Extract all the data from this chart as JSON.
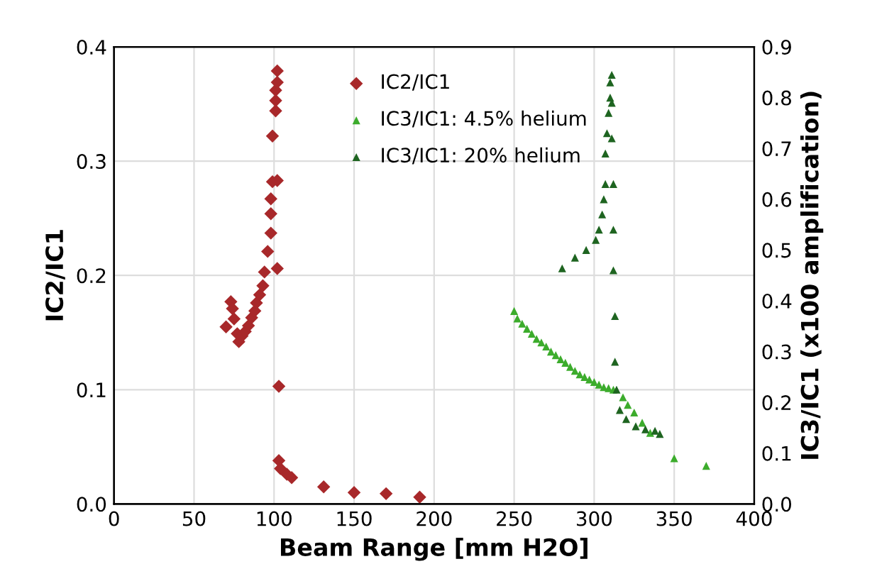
{
  "chart_data": {
    "type": "scatter",
    "xlabel": "Beam Range [mm H2O]",
    "ylabel": "IC2/IC1",
    "y2label": "IC3/IC1 (x100 amplification)",
    "xlim": [
      0,
      400
    ],
    "xticks": [
      0,
      50,
      100,
      150,
      200,
      250,
      300,
      350,
      400
    ],
    "ylim": [
      0,
      0.4
    ],
    "yticks": [
      {
        "value": 0,
        "label": "0.0"
      },
      0.1,
      0.2,
      0.3,
      0.4
    ],
    "y2lim": [
      0,
      0.9
    ],
    "y2ticks": [
      {
        "value": 0,
        "label": "0.0"
      },
      0.1,
      0.2,
      0.3,
      0.4,
      0.5,
      0.6,
      0.7,
      0.8,
      0.9
    ],
    "grid": true,
    "legend": "top",
    "series": [
      {
        "name": "IC2/IC1",
        "color": "#a8282a",
        "marker": "diamond",
        "x": [
          70,
          73,
          74,
          75,
          77,
          78,
          80,
          82,
          84,
          86,
          88,
          89,
          91,
          93,
          94,
          96,
          98,
          98,
          98,
          99,
          99,
          101,
          101,
          102,
          102,
          101,
          102,
          102,
          103,
          103,
          104,
          108,
          111,
          131,
          150,
          170,
          191
        ],
        "values": [
          0.155,
          0.177,
          0.171,
          0.162,
          0.149,
          0.142,
          0.147,
          0.151,
          0.156,
          0.163,
          0.169,
          0.176,
          0.183,
          0.191,
          0.203,
          0.221,
          0.237,
          0.254,
          0.267,
          0.282,
          0.322,
          0.353,
          0.362,
          0.379,
          0.369,
          0.344,
          0.283,
          0.206,
          0.103,
          0.038,
          0.031,
          0.026,
          0.023,
          0.015,
          0.01,
          0.009,
          0.006
        ]
      },
      {
        "name": "IC3/IC1: 4.5% helium",
        "color": "#3cac2c",
        "marker": "triangle",
        "axis": "y2",
        "x": [
          250,
          252,
          255,
          258,
          261,
          264,
          267,
          270,
          273,
          276,
          279,
          282,
          285,
          288,
          291,
          294,
          297,
          300,
          303,
          306,
          309,
          312,
          318,
          321,
          325,
          330,
          335,
          350,
          370
        ],
        "values": [
          0.38,
          0.365,
          0.355,
          0.345,
          0.335,
          0.325,
          0.318,
          0.31,
          0.3,
          0.293,
          0.285,
          0.278,
          0.27,
          0.262,
          0.255,
          0.25,
          0.245,
          0.24,
          0.235,
          0.23,
          0.228,
          0.225,
          0.21,
          0.195,
          0.18,
          0.16,
          0.14,
          0.09,
          0.075
        ]
      },
      {
        "name": "IC3/IC1: 20% helium",
        "color": "#1e6420",
        "marker": "triangle",
        "axis": "y2",
        "x": [
          280,
          288,
          295,
          301,
          303,
          305,
          306,
          307,
          307,
          308,
          309,
          310,
          310,
          311,
          311,
          311,
          312,
          312,
          312,
          313,
          313,
          314,
          316,
          320,
          326,
          332,
          338,
          341
        ],
        "values": [
          0.464,
          0.485,
          0.5,
          0.52,
          0.54,
          0.57,
          0.6,
          0.63,
          0.69,
          0.73,
          0.77,
          0.8,
          0.83,
          0.845,
          0.79,
          0.72,
          0.63,
          0.54,
          0.46,
          0.37,
          0.28,
          0.225,
          0.185,
          0.167,
          0.153,
          0.147,
          0.144,
          0.138
        ]
      }
    ]
  }
}
